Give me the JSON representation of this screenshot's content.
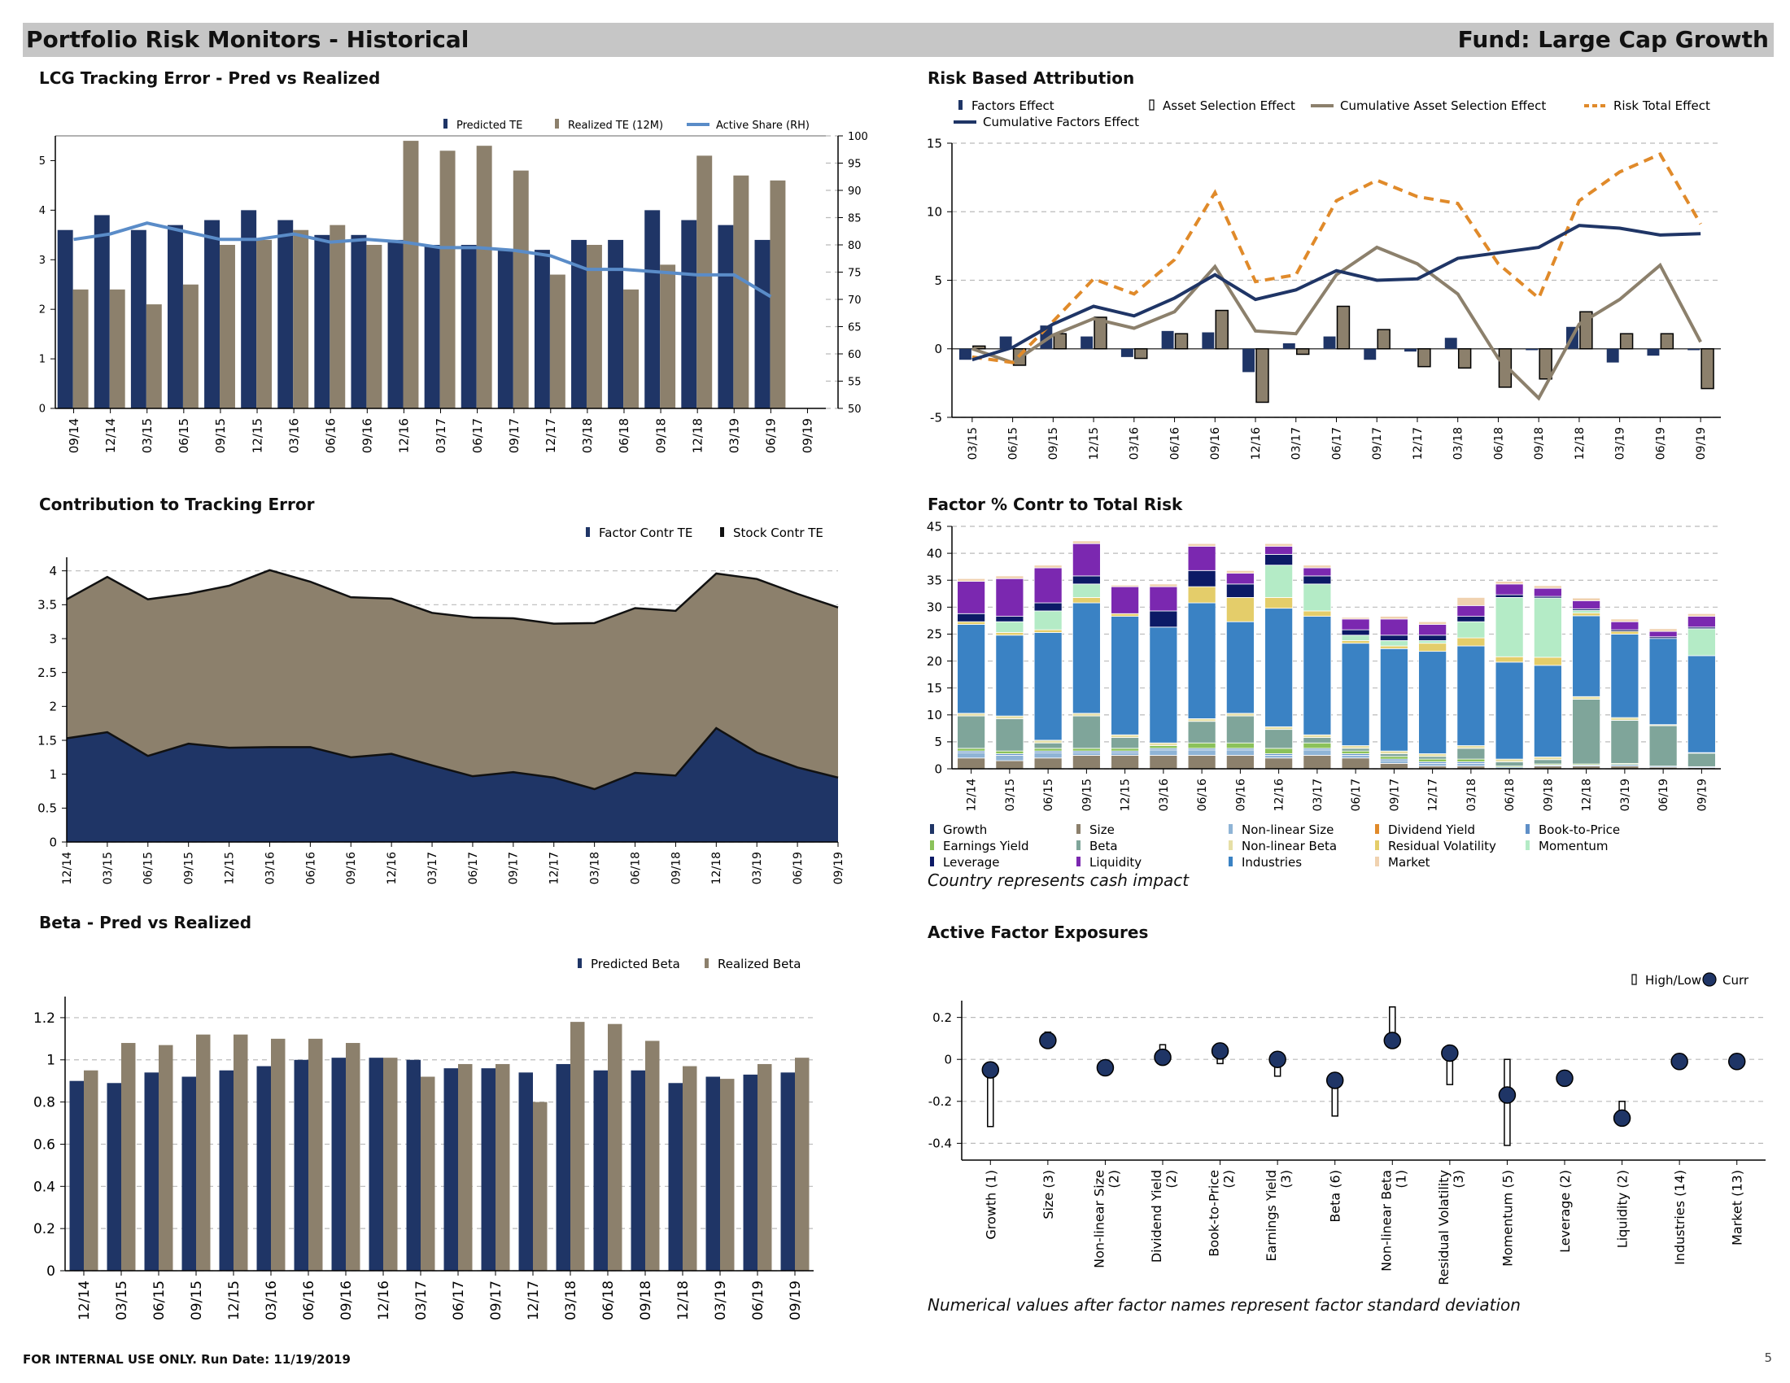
{
  "header": {
    "title": "Portfolio Risk Monitors - Historical",
    "fund": "Fund: Large Cap Growth"
  },
  "footer": {
    "text": "FOR INTERNAL USE ONLY. Run Date: 11/19/2019",
    "page": "5"
  },
  "notes": {
    "country": "Country represents cash impact",
    "std": "Numerical values after factor names represent factor standard deviation"
  },
  "colors": {
    "navy": "#1f3566",
    "taupe": "#8c806c",
    "blue": "#5a8cc8",
    "orange": "#e08a2a"
  },
  "chart_data": [
    {
      "id": "te",
      "type": "bar",
      "title": "LCG Tracking Error - Pred vs Realized",
      "categories": [
        "09/14",
        "12/14",
        "03/15",
        "06/15",
        "09/15",
        "12/15",
        "03/16",
        "06/16",
        "09/16",
        "12/16",
        "03/17",
        "06/17",
        "09/17",
        "12/17",
        "03/18",
        "06/18",
        "09/18",
        "12/18",
        "03/19",
        "06/19",
        "09/19"
      ],
      "series": [
        {
          "name": "Predicted TE",
          "values": [
            3.6,
            3.9,
            3.6,
            3.7,
            3.8,
            4.0,
            3.8,
            3.5,
            3.5,
            3.4,
            3.3,
            3.3,
            3.2,
            3.2,
            3.4,
            3.4,
            4.0,
            3.8,
            3.7,
            3.4,
            null
          ]
        },
        {
          "name": "Realized TE (12M)",
          "values": [
            2.4,
            2.4,
            2.1,
            2.5,
            3.3,
            3.4,
            3.6,
            3.7,
            3.3,
            5.4,
            5.2,
            5.3,
            4.8,
            2.7,
            3.3,
            2.4,
            2.9,
            5.1,
            4.7,
            4.6,
            null
          ]
        },
        {
          "name": "Active Share (RH)",
          "axis": "right",
          "values": [
            81,
            82,
            84,
            82.5,
            81,
            81,
            82,
            80.5,
            81,
            80.5,
            79.5,
            79.5,
            79,
            78,
            75.5,
            75.5,
            75,
            74.5,
            74.5,
            70.5,
            null
          ]
        }
      ],
      "ylim": [
        0,
        5.5
      ],
      "yticks": [
        0,
        1,
        2,
        3,
        4,
        5
      ],
      "y2lim": [
        50,
        100
      ],
      "y2ticks": [
        50,
        55,
        60,
        65,
        70,
        75,
        80,
        85,
        90,
        95,
        100
      ]
    },
    {
      "id": "rba",
      "type": "bar",
      "title": "Risk Based Attribution",
      "categories": [
        "03/15",
        "06/15",
        "09/15",
        "12/15",
        "03/16",
        "06/16",
        "09/16",
        "12/16",
        "03/17",
        "06/17",
        "09/17",
        "12/17",
        "03/18",
        "06/18",
        "09/18",
        "12/18",
        "03/19",
        "06/19",
        "09/19"
      ],
      "series": [
        {
          "name": "Factors Effect",
          "values": [
            -0.8,
            0.9,
            1.7,
            0.9,
            -0.6,
            1.3,
            1.2,
            -1.7,
            0.4,
            0.9,
            -0.8,
            -0.2,
            0.8,
            0,
            -0.1,
            1.6,
            -1.0,
            -0.5,
            -0.1
          ]
        },
        {
          "name": "Asset Selection Effect",
          "values": [
            0.2,
            -1.2,
            1.1,
            2.3,
            -0.7,
            1.1,
            2.8,
            -3.9,
            -0.4,
            3.1,
            1.4,
            -1.3,
            -1.4,
            -2.8,
            -2.2,
            2.7,
            1.1,
            1.1,
            -2.9
          ]
        },
        {
          "name": "Cumulative Asset Selection Effect",
          "values": [
            0,
            -1.0,
            1.0,
            2.2,
            1.5,
            2.7,
            6.0,
            1.3,
            1.1,
            5.4,
            7.4,
            6.2,
            4.0,
            -0.7,
            -3.6,
            1.8,
            3.6,
            6.1,
            0.5
          ]
        },
        {
          "name": "Risk Total Effect",
          "values": [
            -0.6,
            -1.0,
            2.0,
            5.1,
            4.0,
            6.5,
            11.4,
            4.9,
            5.4,
            10.8,
            12.3,
            11.1,
            10.6,
            6.2,
            3.7,
            10.8,
            12.9,
            14.2,
            9.1
          ]
        },
        {
          "name": "Cumulative Factors Effect",
          "values": [
            -0.8,
            0.1,
            1.8,
            3.1,
            2.4,
            3.7,
            5.4,
            3.6,
            4.3,
            5.7,
            5.0,
            5.1,
            6.6,
            7.0,
            7.4,
            9.0,
            8.8,
            8.3,
            8.4
          ]
        }
      ],
      "ylim": [
        -5,
        15
      ],
      "yticks": [
        -5,
        0,
        5,
        10,
        15
      ]
    },
    {
      "id": "ctr",
      "type": "area",
      "title": "Contribution to Tracking Error",
      "categories": [
        "12/14",
        "03/15",
        "06/15",
        "09/15",
        "12/15",
        "03/16",
        "06/16",
        "09/16",
        "12/16",
        "03/17",
        "06/17",
        "09/17",
        "12/17",
        "03/18",
        "06/18",
        "09/18",
        "12/18",
        "03/19",
        "06/19",
        "09/19"
      ],
      "series": [
        {
          "name": "Factor Contr TE",
          "values": [
            1.53,
            1.62,
            1.27,
            1.45,
            1.39,
            1.4,
            1.4,
            1.25,
            1.3,
            1.13,
            0.97,
            1.03,
            0.95,
            0.78,
            1.02,
            0.98,
            1.68,
            1.32,
            1.1,
            0.95
          ]
        },
        {
          "name": "Stock Contr TE",
          "values": [
            2.05,
            2.29,
            2.31,
            2.21,
            2.39,
            2.61,
            2.44,
            2.36,
            2.29,
            2.25,
            2.34,
            2.27,
            2.27,
            2.45,
            2.43,
            2.43,
            2.28,
            2.56,
            2.56,
            2.51
          ]
        }
      ],
      "ylim": [
        0,
        4.2
      ],
      "yticks": [
        0,
        0.5,
        1,
        1.5,
        2,
        2.5,
        3,
        3.5,
        4
      ]
    },
    {
      "id": "fct",
      "type": "bar",
      "title": "Factor % Contr to Total Risk",
      "categories": [
        "12/14",
        "03/15",
        "06/15",
        "09/15",
        "12/15",
        "03/16",
        "06/16",
        "09/16",
        "12/16",
        "03/17",
        "06/17",
        "09/17",
        "12/17",
        "03/18",
        "06/18",
        "09/18",
        "12/18",
        "03/19",
        "06/19",
        "09/19"
      ],
      "stacked": true,
      "series": [
        {
          "name": "Growth",
          "values": [
            0,
            0,
            0,
            0,
            0,
            0,
            0,
            0,
            0,
            0,
            0,
            0,
            0,
            0,
            0,
            0,
            0,
            0,
            0,
            0
          ]
        },
        {
          "name": "Size",
          "values": [
            2.0,
            1.5,
            2.0,
            2.5,
            2.5,
            2.5,
            2.5,
            2.5,
            2.0,
            2.5,
            2.0,
            1.0,
            0.5,
            0.5,
            0,
            0.5,
            0.5,
            0.5,
            0.3,
            0.2
          ]
        },
        {
          "name": "Non-linear Size",
          "values": [
            1.0,
            1.0,
            1.0,
            0.5,
            0.5,
            1.0,
            1.0,
            1.0,
            0.5,
            1.0,
            0.5,
            0.5,
            0.5,
            0.5,
            0.3,
            0.2,
            0.2,
            0.3,
            0.2,
            0.2
          ]
        },
        {
          "name": "Dividend Yield",
          "values": [
            0,
            0,
            0,
            0,
            0,
            0,
            0,
            0,
            0,
            0,
            0,
            0,
            0,
            0,
            0,
            0,
            0,
            0,
            0,
            0
          ]
        },
        {
          "name": "Book-to-Price",
          "values": [
            0.3,
            0.3,
            0.3,
            0.3,
            0.3,
            0.3,
            0.3,
            0.3,
            0.3,
            0.3,
            0.3,
            0.3,
            0.3,
            0.3,
            0,
            0,
            0,
            0,
            0,
            0
          ]
        },
        {
          "name": "Earnings Yield",
          "values": [
            0.5,
            0.5,
            0.5,
            0.5,
            0.5,
            0.5,
            1.0,
            1.0,
            1.0,
            1.0,
            0.5,
            0.5,
            0.5,
            0.5,
            0.2,
            0.2,
            0.2,
            0.2,
            0,
            0
          ]
        },
        {
          "name": "Beta",
          "values": [
            6.0,
            6.0,
            1.0,
            6.0,
            2.0,
            0,
            4.0,
            5.0,
            3.5,
            1.0,
            0.5,
            0.5,
            0.5,
            2.0,
            0.8,
            0.8,
            12.0,
            8.0,
            7.5,
            2.5
          ]
        },
        {
          "name": "Non-linear Beta",
          "values": [
            0.5,
            0.5,
            0.5,
            0.5,
            0.5,
            0.5,
            0.5,
            0.5,
            0.5,
            0.5,
            0.5,
            0.5,
            0.5,
            0.5,
            0.5,
            0.5,
            0.5,
            0.5,
            0.2,
            0.1
          ]
        },
        {
          "name": "Industries",
          "values": [
            16.5,
            15.0,
            20.0,
            20.5,
            22.0,
            21.5,
            21.5,
            17.0,
            22.0,
            22.0,
            19.0,
            19.0,
            19.0,
            18.5,
            18.0,
            17.0,
            15.0,
            15.5,
            16.0,
            18.0
          ]
        },
        {
          "name": "Residual Volatility",
          "values": [
            0.5,
            0.5,
            0.5,
            1.0,
            0.5,
            0,
            3.0,
            4.5,
            2.0,
            1.0,
            0.5,
            0.5,
            1.5,
            1.5,
            1.0,
            1.5,
            0.5,
            0.5,
            0,
            0
          ]
        },
        {
          "name": "Momentum",
          "values": [
            0,
            2.0,
            3.5,
            2.5,
            0,
            0,
            0,
            0,
            6.0,
            5.0,
            1.0,
            1.0,
            0.5,
            3.0,
            11.0,
            11.0,
            0.5,
            0,
            0,
            5.0
          ]
        },
        {
          "name": "Leverage",
          "values": [
            1.5,
            1.0,
            1.5,
            1.5,
            0,
            3.0,
            3.0,
            2.5,
            2.0,
            1.5,
            1.0,
            1.0,
            1.0,
            1.0,
            0.5,
            0.3,
            0.3,
            0.3,
            0.3,
            0.3
          ]
        },
        {
          "name": "Liquidity",
          "values": [
            6.0,
            7.0,
            6.5,
            6.0,
            5.0,
            4.5,
            4.5,
            2.0,
            1.5,
            1.5,
            2.0,
            3.0,
            2.0,
            2.0,
            2.0,
            1.5,
            1.5,
            1.5,
            1.0,
            2.0
          ]
        },
        {
          "name": "Market",
          "values": [
            0.5,
            0.5,
            0.5,
            0.5,
            0.3,
            0.5,
            0.5,
            0.5,
            0.5,
            0.5,
            0.3,
            0.5,
            0.5,
            1.5,
            0.5,
            0.5,
            0.5,
            0.5,
            0.5,
            0.5
          ]
        }
      ],
      "ylim": [
        0,
        45
      ],
      "yticks": [
        0,
        5,
        10,
        15,
        20,
        25,
        30,
        35,
        40,
        45
      ]
    },
    {
      "id": "beta",
      "type": "bar",
      "title": "Beta - Pred vs Realized",
      "categories": [
        "12/14",
        "03/15",
        "06/15",
        "09/15",
        "12/15",
        "03/16",
        "06/16",
        "09/16",
        "12/16",
        "03/17",
        "06/17",
        "09/17",
        "12/17",
        "03/18",
        "06/18",
        "09/18",
        "12/18",
        "03/19",
        "06/19",
        "09/19"
      ],
      "series": [
        {
          "name": "Predicted Beta",
          "values": [
            0.9,
            0.89,
            0.94,
            0.92,
            0.95,
            0.97,
            1.0,
            1.01,
            1.01,
            1.0,
            0.96,
            0.96,
            0.94,
            0.98,
            0.95,
            0.95,
            0.89,
            0.92,
            0.93,
            0.94
          ]
        },
        {
          "name": "Realized Beta",
          "values": [
            0.95,
            1.08,
            1.07,
            1.12,
            1.12,
            1.1,
            1.1,
            1.08,
            1.01,
            0.92,
            0.98,
            0.98,
            0.8,
            1.18,
            1.17,
            1.09,
            0.97,
            0.91,
            0.98,
            1.01
          ]
        }
      ],
      "ylim": [
        0,
        1.3
      ],
      "yticks": [
        0,
        0.2,
        0.4,
        0.6,
        0.8,
        1,
        1.2
      ]
    },
    {
      "id": "afe",
      "type": "scatter",
      "title": "Active Factor Exposures",
      "categories": [
        "Growth (1)",
        "Size (3)",
        "Non-linear Size (2)",
        "Dividend Yield (2)",
        "Book-to-Price (2)",
        "Earnings Yield (3)",
        "Beta (6)",
        "Non-linear Beta (1)",
        "Residual Volatility (3)",
        "Momentum (5)",
        "Leverage (2)",
        "Liquidity (2)",
        "Industries (14)",
        "Market (13)"
      ],
      "series": [
        {
          "name": "High/Low",
          "high": [
            -0.05,
            0.13,
            -0.04,
            0.07,
            0.04,
            0.02,
            -0.08,
            0.25,
            0.03,
            0.0,
            -0.08,
            -0.2,
            0.0,
            0.0
          ],
          "low": [
            -0.32,
            0.07,
            -0.04,
            -0.02,
            -0.02,
            -0.08,
            -0.27,
            0.06,
            -0.12,
            -0.41,
            -0.09,
            -0.29,
            -0.01,
            -0.01
          ]
        },
        {
          "name": "Curr",
          "values": [
            -0.05,
            0.09,
            -0.04,
            0.01,
            0.04,
            0.0,
            -0.1,
            0.09,
            0.03,
            -0.17,
            -0.09,
            -0.28,
            -0.01,
            -0.01
          ]
        }
      ],
      "ylim": [
        -0.48,
        0.28
      ],
      "yticks": [
        -0.4,
        -0.2,
        0,
        0.2
      ]
    }
  ]
}
